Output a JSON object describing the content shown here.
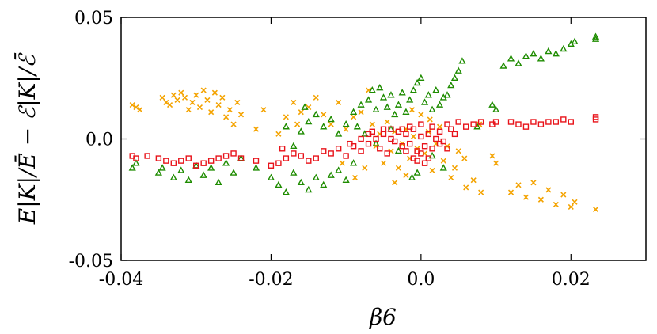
{
  "chart_data": {
    "type": "scatter",
    "title": "",
    "xlabel": "β6",
    "ylabel": "E|K|/Ē − ℰ|K|/ℰ̄",
    "xlim": [
      -0.04,
      0.03
    ],
    "ylim": [
      -0.05,
      0.05
    ],
    "x_ticks": [
      {
        "value": -0.04,
        "label": "-0.04"
      },
      {
        "value": -0.02,
        "label": "-0.02"
      },
      {
        "value": 0.0,
        "label": "0.0"
      },
      {
        "value": 0.02,
        "label": "0.02"
      }
    ],
    "y_ticks": [
      {
        "value": 0.05,
        "label": "0.05"
      },
      {
        "value": 0.0,
        "label": "0.0"
      },
      {
        "value": -0.05,
        "label": "-0.05"
      }
    ],
    "grid": false,
    "legend": "none",
    "series": [
      {
        "marker": "x",
        "color": "#f4a300",
        "points": [
          [
            -0.0385,
            0.014
          ],
          [
            -0.038,
            0.013
          ],
          [
            -0.0375,
            0.012
          ],
          [
            -0.0345,
            0.017
          ],
          [
            -0.034,
            0.015
          ],
          [
            -0.0335,
            0.014
          ],
          [
            -0.033,
            0.018
          ],
          [
            -0.0325,
            0.016
          ],
          [
            -0.032,
            0.019
          ],
          [
            -0.0315,
            0.017
          ],
          [
            -0.031,
            0.012
          ],
          [
            -0.0305,
            0.015
          ],
          [
            -0.03,
            0.018
          ],
          [
            -0.0295,
            0.013
          ],
          [
            -0.029,
            0.02
          ],
          [
            -0.0285,
            0.016
          ],
          [
            -0.028,
            0.011
          ],
          [
            -0.0275,
            0.019
          ],
          [
            -0.027,
            0.014
          ],
          [
            -0.0265,
            0.017
          ],
          [
            -0.026,
            0.009
          ],
          [
            -0.0255,
            0.012
          ],
          [
            -0.025,
            0.006
          ],
          [
            -0.0245,
            0.015
          ],
          [
            -0.024,
            0.01
          ],
          [
            -0.022,
            0.004
          ],
          [
            -0.021,
            0.012
          ],
          [
            -0.019,
            0.002
          ],
          [
            -0.018,
            0.009
          ],
          [
            -0.017,
            0.015
          ],
          [
            -0.0165,
            0.006
          ],
          [
            -0.016,
            0.011
          ],
          [
            -0.015,
            0.013
          ],
          [
            -0.014,
            0.017
          ],
          [
            -0.013,
            0.01
          ],
          [
            -0.012,
            0.006
          ],
          [
            -0.011,
            0.015
          ],
          [
            -0.01,
            0.004
          ],
          [
            -0.009,
            0.009
          ],
          [
            -0.008,
            0.011
          ],
          [
            -0.007,
            0.02
          ],
          [
            -0.0065,
            0.006
          ],
          [
            -0.006,
            -0.003
          ],
          [
            -0.0055,
            0.002
          ],
          [
            -0.005,
            -0.01
          ],
          [
            -0.0045,
            0.007
          ],
          [
            -0.004,
            -0.005
          ],
          [
            -0.0035,
            0.003
          ],
          [
            -0.003,
            -0.012
          ],
          [
            -0.0025,
            -0.002
          ],
          [
            -0.002,
            0.004
          ],
          [
            -0.0015,
            -0.008
          ],
          [
            -0.001,
            0.001
          ],
          [
            -0.0005,
            -0.004
          ],
          [
            0.0,
            0.01
          ],
          [
            0.0005,
            -0.006
          ],
          [
            0.001,
            0.003
          ],
          [
            0.0015,
            -0.013
          ],
          [
            0.002,
            -0.002
          ],
          [
            0.0025,
            0.005
          ],
          [
            0.003,
            -0.009
          ],
          [
            0.0035,
            -0.003
          ],
          [
            0.004,
            -0.016
          ],
          [
            0.0045,
            -0.012
          ],
          [
            0.005,
            -0.005
          ],
          [
            0.006,
            -0.02
          ],
          [
            0.007,
            -0.017
          ],
          [
            0.008,
            -0.022
          ],
          [
            0.0095,
            -0.007
          ],
          [
            0.01,
            -0.01
          ],
          [
            0.012,
            -0.022
          ],
          [
            0.013,
            -0.019
          ],
          [
            0.014,
            -0.024
          ],
          [
            0.015,
            -0.018
          ],
          [
            0.016,
            -0.025
          ],
          [
            0.017,
            -0.021
          ],
          [
            0.018,
            -0.027
          ],
          [
            0.019,
            -0.023
          ],
          [
            0.02,
            -0.028
          ],
          [
            0.0205,
            -0.026
          ],
          [
            0.0233,
            -0.029
          ],
          [
            -0.0088,
            -0.016
          ],
          [
            -0.0075,
            -0.012
          ],
          [
            0.0058,
            -0.008
          ],
          [
            -0.0035,
            -0.018
          ],
          [
            -0.002,
            -0.015
          ],
          [
            0.0012,
            0.008
          ],
          [
            -0.0012,
            0.012
          ],
          [
            0.0078,
            0.006
          ],
          [
            -0.0105,
            -0.01
          ]
        ]
      },
      {
        "marker": "triangle",
        "color": "#1e8c00",
        "points": [
          [
            -0.0385,
            -0.012
          ],
          [
            -0.038,
            -0.01
          ],
          [
            -0.035,
            -0.014
          ],
          [
            -0.0345,
            -0.012
          ],
          [
            -0.033,
            -0.016
          ],
          [
            -0.032,
            -0.013
          ],
          [
            -0.031,
            -0.017
          ],
          [
            -0.03,
            -0.011
          ],
          [
            -0.029,
            -0.015
          ],
          [
            -0.028,
            -0.012
          ],
          [
            -0.027,
            -0.018
          ],
          [
            -0.026,
            -0.01
          ],
          [
            -0.025,
            -0.014
          ],
          [
            -0.024,
            -0.008
          ],
          [
            -0.022,
            -0.012
          ],
          [
            -0.02,
            -0.016
          ],
          [
            -0.019,
            -0.019
          ],
          [
            -0.018,
            -0.022
          ],
          [
            -0.017,
            -0.014
          ],
          [
            -0.016,
            -0.018
          ],
          [
            -0.015,
            -0.021
          ],
          [
            -0.014,
            -0.016
          ],
          [
            -0.013,
            -0.019
          ],
          [
            -0.012,
            -0.015
          ],
          [
            -0.011,
            -0.013
          ],
          [
            -0.01,
            -0.017
          ],
          [
            -0.009,
            -0.01
          ],
          [
            -0.018,
            0.005
          ],
          [
            -0.017,
            -0.003
          ],
          [
            -0.016,
            0.003
          ],
          [
            -0.0155,
            0.013
          ],
          [
            -0.015,
            0.007
          ],
          [
            -0.014,
            0.01
          ],
          [
            -0.013,
            0.005
          ],
          [
            -0.012,
            0.008
          ],
          [
            -0.011,
            0.002
          ],
          [
            -0.01,
            0.006
          ],
          [
            -0.009,
            0.011
          ],
          [
            -0.008,
            0.014
          ],
          [
            -0.007,
            0.016
          ],
          [
            -0.0065,
            0.02
          ],
          [
            -0.006,
            0.012
          ],
          [
            -0.0055,
            0.021
          ],
          [
            -0.005,
            0.017
          ],
          [
            -0.0045,
            0.013
          ],
          [
            -0.004,
            0.018
          ],
          [
            -0.0035,
            0.01
          ],
          [
            -0.003,
            0.014
          ],
          [
            -0.0025,
            0.019
          ],
          [
            -0.002,
            0.011
          ],
          [
            -0.0015,
            0.016
          ],
          [
            -0.001,
            0.02
          ],
          [
            -0.0005,
            0.023
          ],
          [
            0.0,
            0.025
          ],
          [
            0.0005,
            0.015
          ],
          [
            0.001,
            0.018
          ],
          [
            0.0015,
            0.012
          ],
          [
            0.002,
            0.02
          ],
          [
            0.0025,
            0.014
          ],
          [
            0.003,
            0.017
          ],
          [
            0.0035,
            0.018
          ],
          [
            0.004,
            0.022
          ],
          [
            0.0045,
            0.025
          ],
          [
            0.005,
            0.028
          ],
          [
            0.0055,
            0.032
          ],
          [
            0.0095,
            0.014
          ],
          [
            0.01,
            0.012
          ],
          [
            0.011,
            0.03
          ],
          [
            0.012,
            0.033
          ],
          [
            0.013,
            0.031
          ],
          [
            0.014,
            0.034
          ],
          [
            0.015,
            0.035
          ],
          [
            0.016,
            0.033
          ],
          [
            0.017,
            0.036
          ],
          [
            0.018,
            0.035
          ],
          [
            0.019,
            0.037
          ],
          [
            0.02,
            0.039
          ],
          [
            0.0205,
            0.04
          ],
          [
            0.0233,
            0.042
          ],
          [
            0.0233,
            0.041
          ],
          [
            -0.0085,
            0.005
          ],
          [
            -0.0075,
            0.002
          ],
          [
            -0.003,
            -0.005
          ],
          [
            0.0015,
            -0.007
          ],
          [
            -0.0005,
            -0.014
          ],
          [
            -0.0012,
            -0.016
          ],
          [
            0.003,
            -0.012
          ],
          [
            0.0075,
            0.005
          ],
          [
            -0.006,
            -0.002
          ],
          [
            -0.004,
            0.004
          ]
        ]
      },
      {
        "marker": "square",
        "color": "#e8131a",
        "points": [
          [
            -0.0385,
            -0.007
          ],
          [
            -0.038,
            -0.008
          ],
          [
            -0.0365,
            -0.007
          ],
          [
            -0.035,
            -0.008
          ],
          [
            -0.034,
            -0.009
          ],
          [
            -0.033,
            -0.01
          ],
          [
            -0.032,
            -0.009
          ],
          [
            -0.031,
            -0.008
          ],
          [
            -0.03,
            -0.011
          ],
          [
            -0.029,
            -0.01
          ],
          [
            -0.028,
            -0.009
          ],
          [
            -0.027,
            -0.008
          ],
          [
            -0.026,
            -0.007
          ],
          [
            -0.025,
            -0.006
          ],
          [
            -0.024,
            -0.008
          ],
          [
            -0.022,
            -0.009
          ],
          [
            -0.02,
            -0.011
          ],
          [
            -0.019,
            -0.01
          ],
          [
            -0.018,
            -0.008
          ],
          [
            -0.017,
            -0.006
          ],
          [
            -0.016,
            -0.007
          ],
          [
            -0.015,
            -0.009
          ],
          [
            -0.014,
            -0.008
          ],
          [
            -0.013,
            -0.005
          ],
          [
            -0.012,
            -0.006
          ],
          [
            -0.011,
            -0.004
          ],
          [
            -0.01,
            -0.007
          ],
          [
            -0.009,
            -0.003
          ],
          [
            -0.008,
            -0.005
          ],
          [
            -0.007,
            -0.002
          ],
          [
            -0.0065,
            0.003
          ],
          [
            -0.006,
            0.0
          ],
          [
            -0.0055,
            -0.004
          ],
          [
            -0.005,
            0.002
          ],
          [
            -0.0045,
            -0.006
          ],
          [
            -0.004,
            0.004
          ],
          [
            -0.0035,
            -0.001
          ],
          [
            -0.003,
            0.003
          ],
          [
            -0.0025,
            -0.003
          ],
          [
            -0.002,
            0.002
          ],
          [
            -0.0015,
            -0.002
          ],
          [
            -0.001,
            0.004
          ],
          [
            -0.0005,
            -0.005
          ],
          [
            0.0,
            0.001
          ],
          [
            0.0005,
            -0.003
          ],
          [
            0.001,
            0.002
          ],
          [
            0.0015,
            -0.004
          ],
          [
            0.002,
            0.0
          ],
          [
            0.0025,
            0.003
          ],
          [
            0.003,
            -0.001
          ],
          [
            0.0035,
            0.006
          ],
          [
            0.004,
            0.004
          ],
          [
            0.0045,
            0.002
          ],
          [
            0.005,
            0.007
          ],
          [
            0.006,
            0.005
          ],
          [
            0.007,
            0.006
          ],
          [
            0.008,
            0.007
          ],
          [
            0.0095,
            0.006
          ],
          [
            0.01,
            0.007
          ],
          [
            0.012,
            0.007
          ],
          [
            0.013,
            0.006
          ],
          [
            0.014,
            0.005
          ],
          [
            0.015,
            0.007
          ],
          [
            0.016,
            0.006
          ],
          [
            0.017,
            0.007
          ],
          [
            0.018,
            0.007
          ],
          [
            0.019,
            0.008
          ],
          [
            0.02,
            0.007
          ],
          [
            0.0233,
            0.008
          ],
          [
            0.0233,
            0.009
          ],
          [
            -0.0005,
            -0.009
          ],
          [
            0.0005,
            -0.01
          ],
          [
            -0.001,
            -0.008
          ],
          [
            0.0,
            -0.006
          ],
          [
            -0.002,
            -0.005
          ],
          [
            0.001,
            -0.008
          ],
          [
            -0.0025,
            0.004
          ],
          [
            -0.0015,
            0.005
          ],
          [
            0.0,
            0.006
          ],
          [
            0.0015,
            0.005
          ],
          [
            -0.005,
            0.004
          ],
          [
            -0.004,
            0.0
          ],
          [
            -0.007,
            0.002
          ],
          [
            -0.008,
            0.0
          ],
          [
            -0.0095,
            -0.002
          ],
          [
            0.0025,
            -0.002
          ],
          [
            0.0035,
            -0.004
          ],
          [
            -0.0185,
            -0.004
          ]
        ]
      }
    ]
  }
}
